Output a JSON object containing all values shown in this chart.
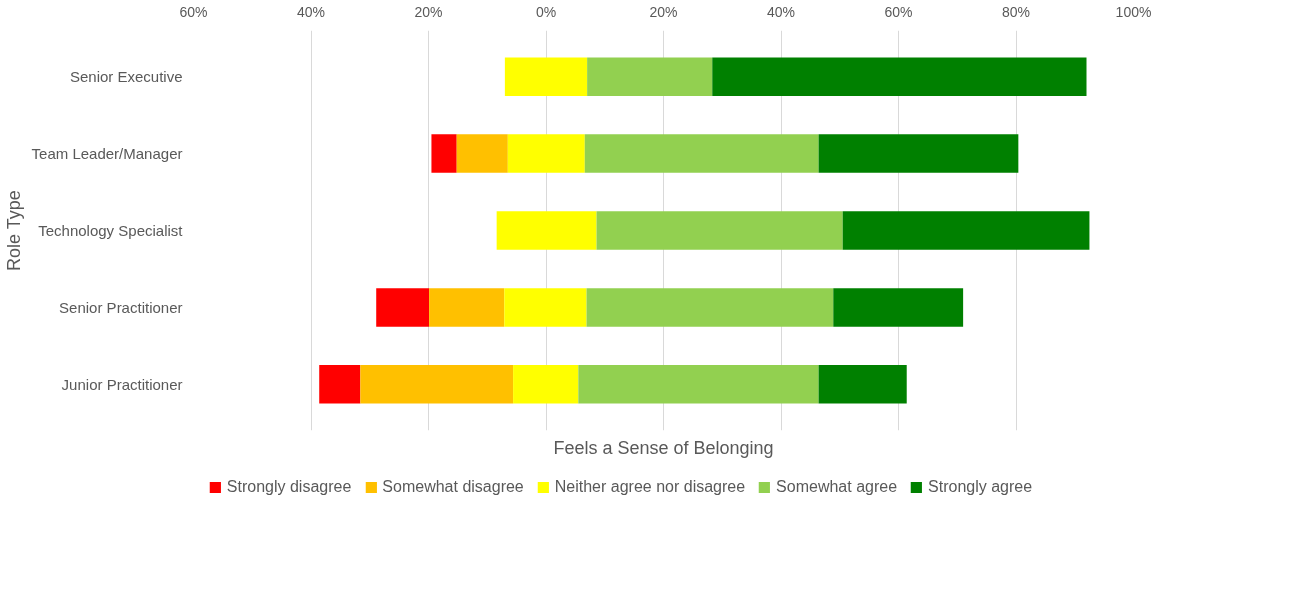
{
  "chart_data": {
    "type": "bar",
    "orientation": "horizontal",
    "xlabel": "Feels a Sense of Belonging",
    "ylabel": "Role Type",
    "categories": [
      "Senior Executive",
      "Team Leader/Manager",
      "Technology Specialist",
      "Senior Practitioner",
      "Junior Practitioner"
    ],
    "series": [
      {
        "name": "Strongly disagree",
        "color": "#ff0000",
        "values": [
          null,
          4.3,
          null,
          9.0,
          7.0
        ],
        "base": [
          null,
          -19.5,
          null,
          -28.9,
          -38.6
        ]
      },
      {
        "name": "Somewhat disagree",
        "color": "#ffc000",
        "values": [
          null,
          8.7,
          null,
          12.8,
          26.0
        ],
        "base": [
          null,
          -15.2,
          null,
          -19.9,
          -31.6
        ]
      },
      {
        "name": "Neither agree nor disagree",
        "color": "#ffff00",
        "values": [
          14.0,
          13.1,
          17.0,
          14.0,
          11.1
        ],
        "base": [
          -7.0,
          -6.5,
          -8.4,
          -7.1,
          -5.6
        ]
      },
      {
        "name": "Somewhat agree",
        "color": "#92d050",
        "values": [
          21.3,
          39.8,
          41.9,
          42.0,
          40.9
        ],
        "base": [
          7.0,
          6.6,
          8.6,
          6.9,
          5.5
        ]
      },
      {
        "name": "Strongly agree",
        "color": "#008000",
        "values": [
          63.7,
          34.0,
          42.0,
          22.1,
          15.0
        ],
        "base": [
          28.3,
          46.4,
          50.5,
          48.9,
          46.4
        ]
      }
    ],
    "xlim": [
      -60,
      100
    ],
    "xticks": [
      {
        "value": -60,
        "label": "60%"
      },
      {
        "value": -40,
        "label": "40%"
      },
      {
        "value": -20,
        "label": "20%"
      },
      {
        "value": 0,
        "label": "0%"
      },
      {
        "value": 20,
        "label": "20%"
      },
      {
        "value": 40,
        "label": "40%"
      },
      {
        "value": 60,
        "label": "60%"
      },
      {
        "value": 80,
        "label": "80%"
      },
      {
        "value": 100,
        "label": "100%"
      }
    ],
    "grid": "x",
    "legend": "bottom"
  }
}
